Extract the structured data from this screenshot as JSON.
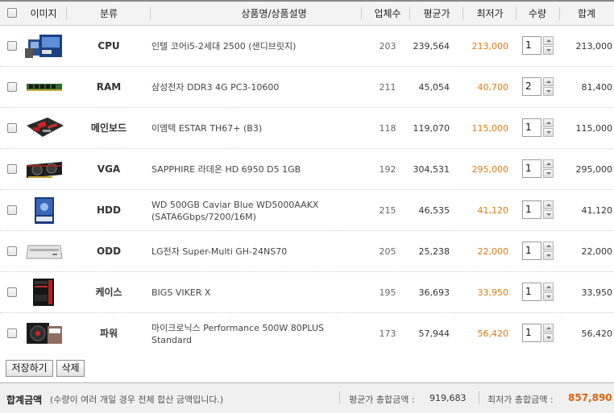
{
  "header": {
    "image": "이미지",
    "category": "분류",
    "product": "상품명/상품설명",
    "sellers": "업체수",
    "avg_price": "평균가",
    "low_price": "최저가",
    "quantity": "수량",
    "total": "합계"
  },
  "rows": [
    {
      "category": "CPU",
      "name": "인텔 코어i5-2세대 2500 (샌디브릿지)",
      "sellers": "203",
      "avg": "239,564",
      "low": "213,000",
      "qty": "1",
      "total": "213,000",
      "icon": "cpu-box-icon"
    },
    {
      "category": "RAM",
      "name": "삼성전자 DDR3 4G PC3-10600",
      "sellers": "211",
      "avg": "45,054",
      "low": "40,700",
      "qty": "2",
      "total": "81,400",
      "icon": "ram-stick-icon"
    },
    {
      "category": "메인보드",
      "name": "이엠텍 ESTAR TH67+ (B3)",
      "sellers": "118",
      "avg": "119,070",
      "low": "115,000",
      "qty": "1",
      "total": "115,000",
      "icon": "motherboard-icon"
    },
    {
      "category": "VGA",
      "name": "SAPPHIRE 라데온 HD 6950 D5 1GB",
      "sellers": "192",
      "avg": "304,531",
      "low": "295,000",
      "qty": "1",
      "total": "295,000",
      "icon": "graphics-card-icon"
    },
    {
      "category": "HDD",
      "name": "WD 500GB Caviar Blue WD5000AAKX (SATA6Gbps/7200/16M)",
      "sellers": "215",
      "avg": "46,535",
      "low": "41,120",
      "qty": "1",
      "total": "41,120",
      "icon": "hard-drive-icon"
    },
    {
      "category": "ODD",
      "name": "LG전자 Super-Multi GH-24NS70",
      "sellers": "205",
      "avg": "25,238",
      "low": "22,000",
      "qty": "1",
      "total": "22,000",
      "icon": "optical-drive-icon"
    },
    {
      "category": "케이스",
      "name": "BIGS VIKER X",
      "sellers": "195",
      "avg": "36,693",
      "low": "33,950",
      "qty": "1",
      "total": "33,950",
      "icon": "pc-case-icon"
    },
    {
      "category": "파워",
      "name": "마이크로닉스 Performance 500W 80PLUS Standard",
      "sellers": "173",
      "avg": "57,944",
      "low": "56,420",
      "qty": "1",
      "total": "56,420",
      "icon": "power-supply-icon"
    }
  ],
  "buttons": {
    "save": "저장하기",
    "delete": "삭제"
  },
  "footer": {
    "title": "합계금액",
    "note": "(수량이 여러 개일 경우 전체 합산 금액입니다.)",
    "avg_label": "평균가 총합금액 :",
    "avg_value": "919,683",
    "low_label": "최저가 총합금액 :",
    "low_value": "857,890"
  },
  "colors": {
    "low_price": "#e07b10",
    "low_total": "#e2620c"
  }
}
